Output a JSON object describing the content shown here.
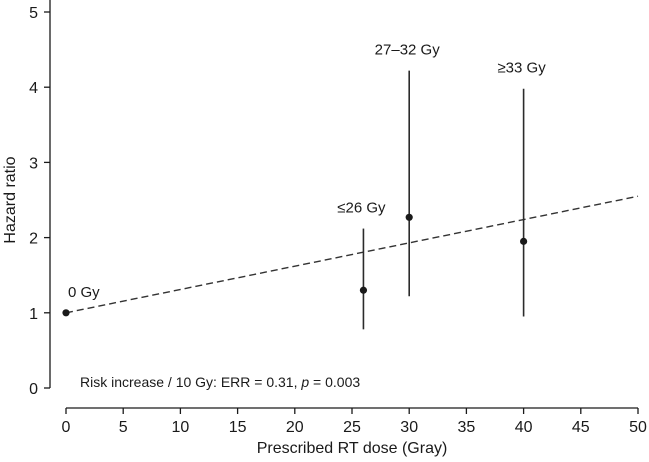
{
  "chart_data": {
    "type": "scatter",
    "xlabel": "Prescribed RT dose (Gray)",
    "ylabel": "Hazard ratio",
    "xlim": [
      0,
      50
    ],
    "ylim": [
      0,
      5
    ],
    "xticks": [
      0,
      5,
      10,
      15,
      20,
      25,
      30,
      35,
      40,
      45,
      50
    ],
    "yticks": [
      0,
      1,
      2,
      3,
      4,
      5
    ],
    "points": [
      {
        "label": "0 Gy",
        "x": 0,
        "y": 1.0,
        "ci_low": null,
        "ci_high": null
      },
      {
        "label": "≤26 Gy",
        "x": 26,
        "y": 1.3,
        "ci_low": 0.78,
        "ci_high": 2.12
      },
      {
        "label": "27–32 Gy",
        "x": 30,
        "y": 2.27,
        "ci_low": 1.22,
        "ci_high": 4.22
      },
      {
        "label": "≥33 Gy",
        "x": 40,
        "y": 1.95,
        "ci_low": 0.95,
        "ci_high": 3.98
      }
    ],
    "trend_line": {
      "style": "dashed",
      "x": [
        0,
        50
      ],
      "y": [
        1.0,
        2.55
      ]
    },
    "annotation": {
      "prefix": "Risk increase / 10 Gy: ERR = 0.31, ",
      "p_symbol": "p",
      "suffix": " = 0.003"
    },
    "grid": false
  }
}
